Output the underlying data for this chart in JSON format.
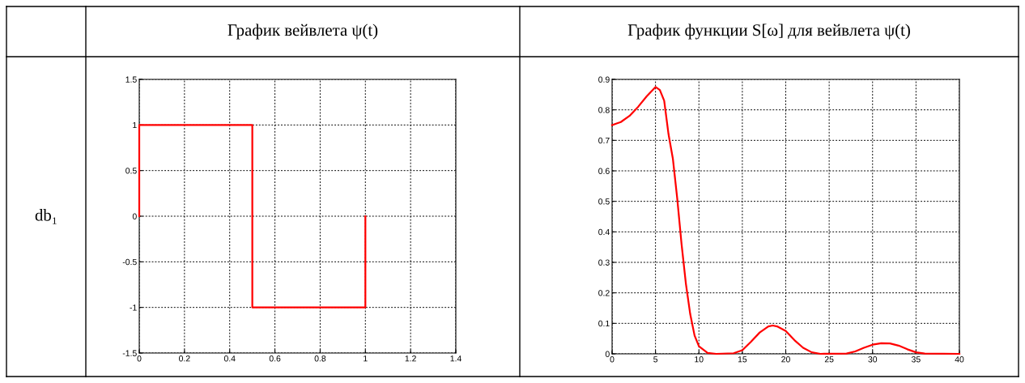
{
  "chart_data": [
    {
      "type": "line",
      "title": "График вейвлета ψ(t)",
      "annotations": [
        "db₁"
      ],
      "xlim": [
        0,
        1.4
      ],
      "xticks": [
        0,
        0.2,
        0.4,
        0.6,
        0.8,
        1,
        1.2,
        1.4
      ],
      "ylim": [
        -1.5,
        1.5
      ],
      "yticks": [
        -1.5,
        -1,
        -0.5,
        0,
        0.5,
        1,
        1.5
      ],
      "grid": true,
      "line_style": "solid",
      "series": [
        {
          "color": "#ff0000",
          "x": [
            0,
            0,
            0.5,
            0.5,
            1,
            1
          ],
          "values": [
            0,
            1,
            1,
            -1,
            -1,
            0
          ]
        }
      ]
    },
    {
      "type": "line",
      "title": "График функции S[ω] для вейвлета ψ(t)",
      "xlim": [
        0,
        40
      ],
      "xticks": [
        0,
        5,
        10,
        15,
        20,
        25,
        30,
        35,
        40
      ],
      "ylim": [
        0,
        0.9
      ],
      "yticks": [
        0,
        0.1,
        0.2,
        0.3,
        0.4,
        0.5,
        0.6,
        0.7,
        0.8,
        0.9
      ],
      "grid": true,
      "line_style": "solid",
      "series": [
        {
          "color": "#ff0000",
          "x": [
            0,
            1,
            2,
            3,
            4,
            5,
            5.5,
            6,
            6.5,
            7,
            7.5,
            8,
            8.5,
            9,
            9.5,
            10,
            11,
            12,
            14,
            15,
            16,
            17,
            18,
            18.5,
            19,
            20,
            21,
            22,
            23,
            24,
            27,
            28,
            29,
            30,
            31,
            32,
            33,
            34,
            35,
            36,
            40
          ],
          "values": [
            0.75,
            0.76,
            0.78,
            0.81,
            0.845,
            0.875,
            0.865,
            0.83,
            0.72,
            0.64,
            0.51,
            0.36,
            0.23,
            0.13,
            0.06,
            0.025,
            0.003,
            0.0,
            0.002,
            0.012,
            0.04,
            0.07,
            0.09,
            0.093,
            0.09,
            0.075,
            0.045,
            0.02,
            0.005,
            0.0,
            0.001,
            0.008,
            0.02,
            0.03,
            0.035,
            0.034,
            0.027,
            0.015,
            0.005,
            0.001,
            0.0
          ]
        }
      ]
    }
  ]
}
